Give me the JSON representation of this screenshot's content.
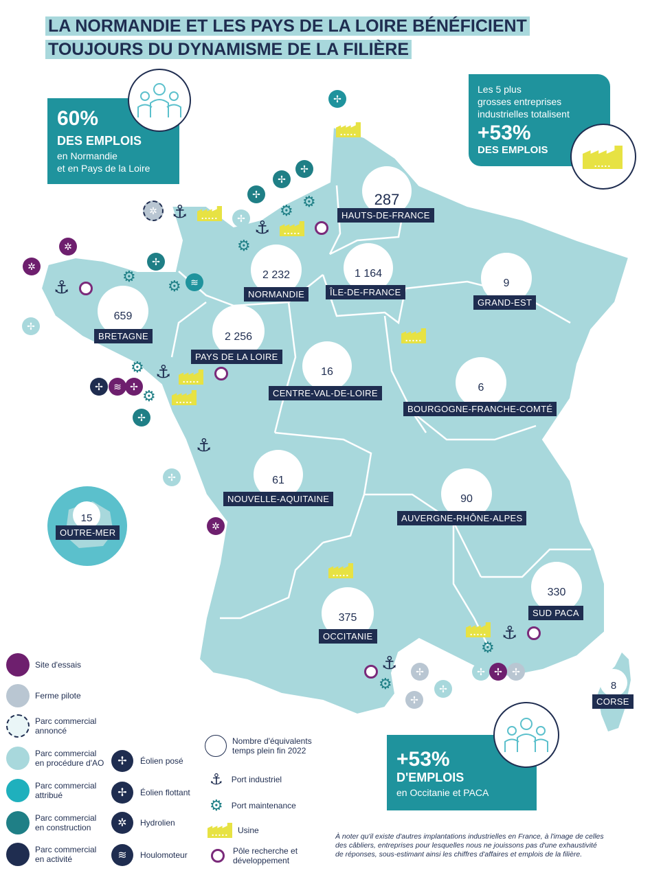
{
  "title": {
    "line1": "LA NORMANDIE ET LES PAYS DE LA LOIRE BÉNÉFICIENT",
    "line2": "TOUJOURS DU DYNAMISME DE LA FILIÈRE"
  },
  "box_left": {
    "pct": "60%",
    "headline": "DES EMPLOIS",
    "sub1": "en Normandie",
    "sub2": "et en Pays de la Loire"
  },
  "box_right": {
    "line1": "Les 5 plus",
    "line2": "grosses entreprises",
    "line3": "industrielles totalisent",
    "pct": "+53%",
    "headline": "DES EMPLOIS"
  },
  "box_bottom": {
    "pct": "+53%",
    "headline": "D'EMPLOIS",
    "sub": "en Occitanie et PACA"
  },
  "regions": [
    {
      "name": "HAUTS-DE-FRANCE",
      "value": "287"
    },
    {
      "name": "NORMANDIE",
      "value": "2 232"
    },
    {
      "name": "ÎLE-DE-FRANCE",
      "value": "1 164"
    },
    {
      "name": "GRAND-EST",
      "value": "9"
    },
    {
      "name": "BRETAGNE",
      "value": "659"
    },
    {
      "name": "PAYS DE LA LOIRE",
      "value": "2 256"
    },
    {
      "name": "CENTRE-VAL-DE-LOIRE",
      "value": "16"
    },
    {
      "name": "BOURGOGNE-FRANCHE-COMTÉ",
      "value": "6"
    },
    {
      "name": "NOUVELLE-AQUITAINE",
      "value": "61"
    },
    {
      "name": "AUVERGNE-RHÔNE-ALPES",
      "value": "90"
    },
    {
      "name": "OUTRE-MER",
      "value": "15"
    },
    {
      "name": "SUD PACA",
      "value": "330"
    },
    {
      "name": "OCCITANIE",
      "value": "375"
    },
    {
      "name": "CORSE",
      "value": "8"
    }
  ],
  "legend": {
    "site_essais": "Site d'essais",
    "ferme_pilote": "Ferme pilote",
    "parc_annonce_1": "Parc commercial",
    "parc_annonce_2": "annoncé",
    "parc_ao_1": "Parc commercial",
    "parc_ao_2": "en procédure d'AO",
    "parc_attribue_1": "Parc commercial",
    "parc_attribue_2": "attribué",
    "parc_construction_1": "Parc commercial",
    "parc_construction_2": "en construction",
    "parc_activite_1": "Parc commercial",
    "parc_activite_2": "en activité",
    "eolien_pose": "Éolien posé",
    "eolien_flottant": "Éolien flottant",
    "hydrolien": "Hydrolien",
    "houlomoteur": "Houlomoteur",
    "etp_1": "Nombre d'équivalents",
    "etp_2": "temps plein fin 2022",
    "port_industriel": "Port industriel",
    "port_maintenance": "Port maintenance",
    "usine": "Usine",
    "pole_rd_1": "Pôle recherche et",
    "pole_rd_2": "développement"
  },
  "note": "À noter qu'il existe d'autres implantations industrielles en France, à l'image de celles des câbliers, entreprises pour lesquelles nous ne jouissons pas d'une exhaustivité de réponses, sous-estimant ainsi les chiffres d'affaires et emplois de la filière.",
  "colors": {
    "navy": "#1f2d50",
    "map": "#a8d8dc",
    "teal": "#1f939d",
    "yellow": "#e7e243",
    "purple": "#6e1f6e",
    "grey": "#b9c6d2"
  }
}
